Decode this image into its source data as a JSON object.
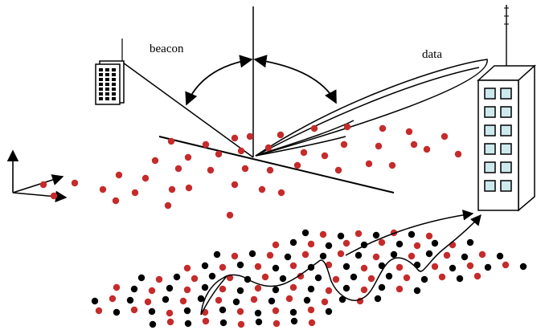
{
  "labels": {
    "beacon": "beacon",
    "data": "data"
  },
  "colors": {
    "red_dot": "#c62b2b",
    "black_dot": "#000000",
    "line": "#000000",
    "window_fill": "#cde9ee",
    "building_fill": "#ffffff"
  },
  "icons": {
    "left_device": "beacon-tower-icon",
    "right_building": "data-tower-building-icon"
  }
}
